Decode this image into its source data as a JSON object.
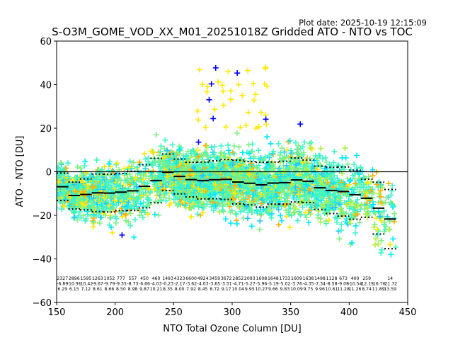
{
  "chart_data": {
    "type": "scatter",
    "title": "S-O3M_GOME_VOD_XX_M01_20251018Z Gridded ATO - NTO vs TOC",
    "plot_date": "Plot date: 2025-10-19 12:15:09",
    "xlabel": "NTO Total Ozone Column [DU]",
    "ylabel": "ATO - NTO [DU]",
    "xlim": [
      150,
      450
    ],
    "ylim": [
      -60,
      60
    ],
    "xticks": [
      "150",
      "200",
      "250",
      "300",
      "350",
      "400",
      "450"
    ],
    "yticks": [
      "60",
      "40",
      "20",
      "0",
      "−20",
      "−40",
      "−60"
    ],
    "xtick_values": [
      150,
      200,
      250,
      300,
      350,
      400,
      450
    ],
    "ytick_values": [
      60,
      40,
      20,
      0,
      -20,
      -40,
      -60
    ],
    "zero_line": 0,
    "bin_width": 10,
    "bins": [
      150,
      160,
      170,
      180,
      190,
      200,
      210,
      220,
      230,
      240,
      250,
      260,
      270,
      280,
      290,
      300,
      310,
      320,
      330,
      340,
      350,
      360,
      370,
      380,
      390,
      400,
      410,
      420,
      430
    ],
    "counts": [
      "2327",
      "2896",
      "1595",
      "1263",
      "1052",
      "777",
      "557",
      "450",
      "460",
      "1493",
      "4323",
      "6600",
      "4924",
      "3459",
      "3672",
      "2852",
      "2093",
      "1608",
      "1648",
      "1733",
      "1609",
      "1638",
      "1498",
      "1128",
      "673",
      "400",
      "259",
      "",
      "14"
    ],
    "means": [
      "-6.89",
      "-10.91",
      "-10.42",
      "-9.67",
      "-9.79",
      "-9.35",
      "-8.73",
      "-6.66",
      "-4.03",
      "-0.23",
      "-2.17",
      "-3.62",
      "-4.03",
      "-3.65",
      "-3.51",
      "-4.71",
      "-5.27",
      "-5.96",
      "-5.19",
      "-5.02",
      "-3.76",
      "-4.35",
      "-7.34",
      "-8.58",
      "-9.08",
      "-10.54",
      "-12.15",
      "-16.70",
      "-21.72"
    ],
    "stds": [
      "6.29",
      "6.15",
      "7.12",
      "8.61",
      "8.66",
      "8.50",
      "8.98",
      "9.87",
      "10.21",
      "8.35",
      "8.00",
      "7.92",
      "8.45",
      "8.72",
      "9.17",
      "10.04",
      "9.95",
      "10.27",
      "9.66",
      "9.83",
      "10.09",
      "9.75",
      "9.96",
      "10.61",
      "11.28",
      "11.26",
      "8.74",
      "11.89",
      "13.59"
    ],
    "series": [
      {
        "name": "mean",
        "style": "solid",
        "color": "#000000"
      },
      {
        "name": "mean+std",
        "style": "dotted",
        "color": "#000000"
      },
      {
        "name": "mean-std",
        "style": "dotted",
        "color": "#000000"
      }
    ],
    "scatter_colors": [
      "#40F5C8",
      "#80F080",
      "#00E8FF",
      "#FFE800",
      "#FFB000",
      "#0000FF",
      "#20C8FF",
      "#B0F040"
    ],
    "grid": false,
    "legend": "none"
  }
}
